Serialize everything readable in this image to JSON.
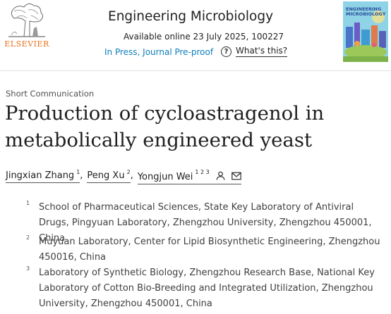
{
  "header": {
    "publisher": "ELSEVIER",
    "journal_title": "Engineering Microbiology",
    "availability": "Available online 23 July 2025, 100227",
    "status": "In Press, Journal Pre-proof",
    "help_label": "What's this?",
    "help_icon": "question-circle-icon",
    "cover_title": "ENGINEERING MICROBIOLOGY"
  },
  "article": {
    "type": "Short Communication",
    "title": "Production of cycloastragenol in metabolically engineered yeast",
    "authors": [
      {
        "name": "Jingxian Zhang",
        "sup": "1"
      },
      {
        "name": "Peng Xu",
        "sup": "2"
      },
      {
        "name": "Yongjun Wei",
        "sup": "1 2 3"
      }
    ],
    "affiliations": [
      {
        "num": "1",
        "text": "School of Pharmaceutical Sciences, State Key Laboratory of Antiviral Drugs, Pingyuan Laboratory, Zhengzhou University, Zhengzhou 450001, China"
      },
      {
        "num": "2",
        "text": "Muyuan Laboratory, Center for Lipid Biosynthetic Engineering, Zhengzhou 450016, China"
      },
      {
        "num": "3",
        "text": "Laboratory of Synthetic Biology, Zhengzhou Research Base, National Key Laboratory of Cotton Bio-Breeding and Integrated Utilization, Zhengzhou University, Zhengzhou 450001, China"
      }
    ]
  },
  "colors": {
    "publisher_orange": "#e9711c",
    "link_blue": "#0c7dbb",
    "text_dark": "#1f1f1f"
  }
}
